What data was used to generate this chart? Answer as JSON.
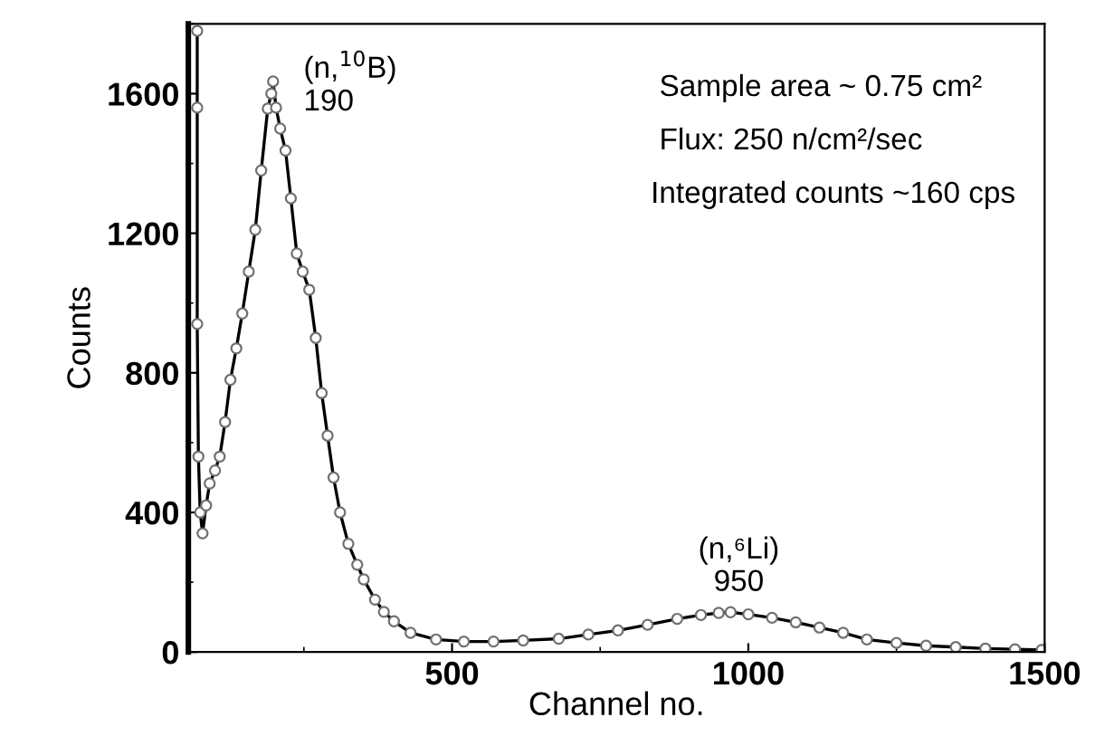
{
  "chart_data": {
    "type": "line",
    "xlabel": "Channel no.",
    "ylabel": "Counts",
    "xlim": [
      55,
      1500
    ],
    "ylim": [
      0,
      1800
    ],
    "xticks": [
      500,
      1000,
      1500
    ],
    "yticks": [
      0,
      400,
      800,
      1200,
      1600
    ],
    "marker": "circle",
    "line_style": "solid",
    "grid": false,
    "legend": false,
    "series": [
      {
        "color": "#000000",
        "x": [
          70,
          70,
          70,
          72,
          75,
          79,
          85,
          91,
          100,
          108,
          117,
          126,
          136,
          146,
          157,
          168,
          178,
          189,
          195,
          198,
          203,
          210,
          219,
          228,
          238,
          248,
          259,
          270,
          280,
          290,
          300,
          311,
          325,
          340,
          351,
          370,
          385,
          402,
          430,
          473,
          520,
          570,
          620,
          680,
          730,
          780,
          830,
          880,
          920,
          950,
          970,
          1000,
          1040,
          1080,
          1120,
          1160,
          1200,
          1250,
          1300,
          1350,
          1400,
          1450,
          1495
        ],
        "values": [
          1780,
          1560,
          940,
          560,
          400,
          340,
          420,
          483,
          520,
          560,
          659,
          780,
          870,
          970,
          1090,
          1210,
          1380,
          1557,
          1600,
          1635,
          1560,
          1500,
          1437,
          1300,
          1142,
          1090,
          1038,
          900,
          742,
          620,
          500,
          400,
          310,
          250,
          208,
          150,
          115,
          88,
          55,
          36,
          30,
          30,
          33,
          38,
          50,
          62,
          78,
          95,
          106,
          112,
          114,
          108,
          98,
          85,
          70,
          55,
          36,
          26,
          18,
          14,
          10,
          8,
          6
        ]
      }
    ],
    "annotations": [
      {
        "text": "(n,$^{10}$B)\n190",
        "x": 190,
        "y": 1600
      },
      {
        "text": "(n,⁶Li)\n950",
        "x": 950,
        "y": 114
      },
      "Sample area ~ 0.75 cm²",
      "Flux: 250 n/cm²/sec",
      "Integrated counts ~160 cps"
    ]
  }
}
